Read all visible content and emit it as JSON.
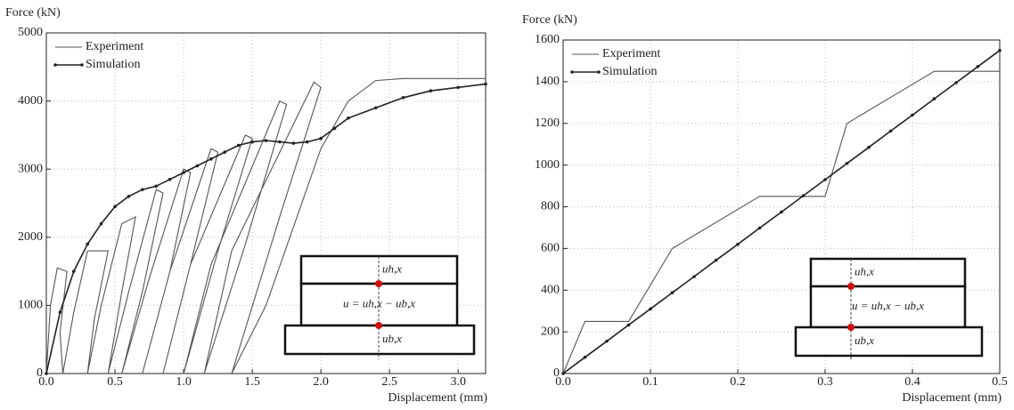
{
  "chart_data": [
    {
      "type": "line",
      "y_label": "Force (kN)",
      "x_label": "Displacement (mm)",
      "xlim": [
        0,
        3.2
      ],
      "ylim": [
        0,
        5000
      ],
      "xticks": [
        {
          "value": 0,
          "label": "0.0"
        },
        0.5,
        {
          "value": 1,
          "label": "1.0"
        },
        1.5,
        {
          "value": 2,
          "label": "2.0"
        },
        2.5,
        {
          "value": 3,
          "label": "3.0"
        }
      ],
      "yticks": [
        0,
        1000,
        2000,
        3000,
        4000,
        5000
      ],
      "grid": true,
      "legend": "top-left",
      "series": [
        {
          "name": "Experiment",
          "color": "#555555",
          "markers": false,
          "x": [
            0,
            0.03,
            0.08,
            0.15,
            0.1,
            0.12,
            0.2,
            0.3,
            0.45,
            0.35,
            0.3,
            0.4,
            0.55,
            0.65,
            0.55,
            0.45,
            0.6,
            0.8,
            0.85,
            0.7,
            0.55,
            0.75,
            1.0,
            1.05,
            0.9,
            0.7,
            0.9,
            1.2,
            1.25,
            1.05,
            0.85,
            1.05,
            1.45,
            1.5,
            1.25,
            1.0,
            1.2,
            1.7,
            1.75,
            1.45,
            1.15,
            1.35,
            1.95,
            2.0,
            1.7,
            1.35,
            1.6,
            2.0,
            2.2,
            2.4,
            2.6,
            2.8,
            3.2
          ],
          "values": [
            0,
            1000,
            1550,
            1500,
            600,
            0,
            900,
            1800,
            1800,
            800,
            0,
            1000,
            2200,
            2300,
            1200,
            0,
            1200,
            2700,
            2650,
            1200,
            0,
            1400,
            3000,
            2950,
            1500,
            0,
            1500,
            3300,
            3250,
            1600,
            0,
            1600,
            3500,
            3450,
            1800,
            0,
            1600,
            4000,
            3950,
            1900,
            0,
            1800,
            4280,
            4200,
            2300,
            0,
            1000,
            3300,
            4000,
            4300,
            4330,
            4330,
            4330
          ]
        },
        {
          "name": "Simulation",
          "color": "#222222",
          "markers": true,
          "x": [
            0,
            0.1,
            0.2,
            0.3,
            0.4,
            0.5,
            0.6,
            0.7,
            0.8,
            0.9,
            1.0,
            1.1,
            1.2,
            1.3,
            1.4,
            1.5,
            1.6,
            1.7,
            1.8,
            1.9,
            2.0,
            2.1,
            2.2,
            2.4,
            2.6,
            2.8,
            3.0,
            3.2
          ],
          "values": [
            0,
            900,
            1500,
            1900,
            2200,
            2450,
            2600,
            2700,
            2750,
            2850,
            2950,
            3050,
            3150,
            3250,
            3350,
            3400,
            3420,
            3400,
            3380,
            3400,
            3450,
            3600,
            3750,
            3900,
            4050,
            4150,
            4200,
            4250
          ]
        }
      ],
      "annotations": [
        "uh,x",
        "u = uh,x − ub,x",
        "ub,x"
      ]
    },
    {
      "type": "line",
      "y_label": "Force (kN)",
      "x_label": "Displacement (mm)",
      "xlim": [
        0,
        0.5
      ],
      "ylim": [
        0,
        1600
      ],
      "xticks": [
        {
          "value": 0,
          "label": "0.0"
        },
        0.1,
        0.2,
        0.3,
        0.4,
        0.5
      ],
      "yticks": [
        0,
        200,
        400,
        600,
        800,
        1000,
        1200,
        1400,
        1600
      ],
      "grid": true,
      "legend": "top-left",
      "series": [
        {
          "name": "Experiment",
          "color": "#555555",
          "markers": false,
          "x": [
            0,
            0.025,
            0.075,
            0.125,
            0.225,
            0.3,
            0.325,
            0.425,
            0.5
          ],
          "values": [
            0,
            250,
            250,
            600,
            850,
            850,
            1200,
            1450,
            1450
          ]
        },
        {
          "name": "Simulation",
          "color": "#222222",
          "markers": true,
          "x": [
            0,
            0.025,
            0.05,
            0.075,
            0.1,
            0.125,
            0.15,
            0.175,
            0.2,
            0.225,
            0.25,
            0.275,
            0.3,
            0.325,
            0.35,
            0.375,
            0.4,
            0.425,
            0.45,
            0.475,
            0.5
          ],
          "values": [
            0,
            78,
            155,
            233,
            310,
            388,
            465,
            543,
            620,
            698,
            775,
            853,
            930,
            1008,
            1085,
            1163,
            1240,
            1318,
            1395,
            1473,
            1550
          ]
        }
      ],
      "annotations": [
        "uh,x",
        "u = uh,x − ub,x",
        "ub,x"
      ]
    }
  ]
}
